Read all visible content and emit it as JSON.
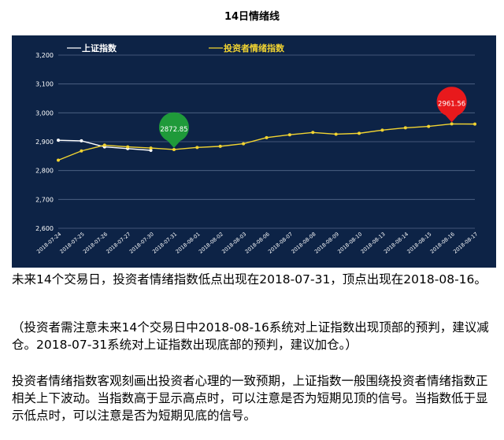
{
  "title": "14日情绪线",
  "chart_data": {
    "type": "line",
    "title": "14日情绪线",
    "x": [
      "2018-07-24",
      "2018-07-25",
      "2018-07-26",
      "2018-07-27",
      "2018-07-30",
      "2018-07-31",
      "2018-08-01",
      "2018-08-02",
      "2018-08-03",
      "2018-08-06",
      "2018-08-07",
      "2018-08-08",
      "2018-08-09",
      "2018-08-10",
      "2018-08-13",
      "2018-08-14",
      "2018-08-15",
      "2018-08-16",
      "2018-08-17"
    ],
    "yticks": [
      "2,600",
      "2,700",
      "2,800",
      "2,900",
      "3,000",
      "3,100",
      "3,200"
    ],
    "ylim": [
      2600,
      3200
    ],
    "legend_position": "top-left",
    "series": [
      {
        "name": "上证指数",
        "color": "#ffffff",
        "values": [
          2905,
          2903,
          2882,
          2876,
          2870,
          null,
          null,
          null,
          null,
          null,
          null,
          null,
          null,
          null,
          null,
          null,
          null,
          null,
          null
        ]
      },
      {
        "name": "投资者情绪指数",
        "color": "#f2d431",
        "values": [
          2836,
          2868,
          2888,
          2882,
          2878,
          2872.85,
          2880,
          2884,
          2893,
          2914,
          2924,
          2932,
          2926,
          2929,
          2940,
          2948,
          2953,
          2961.56,
          2961
        ]
      }
    ],
    "annotations": [
      {
        "label": "2872.85",
        "x": "2018-07-31",
        "y": 2872.85,
        "color": "#1f9a3a"
      },
      {
        "label": "2961.56",
        "x": "2018-08-16",
        "y": 2961.56,
        "color": "#e8191c"
      }
    ]
  },
  "text": {
    "p1": "未来14个交易日，投资者情绪指数低点出现在2018-07-31，顶点出现在2018-08-16。",
    "p2": "（投资者需注意未来14个交易日中2018-08-16系统对上证指数出现顶部的预判，建议减仓。2018-07-31系统对上证指数出现底部的预判，建议加仓。）",
    "p3": "投资者情绪指数客观刻画出投资者心理的一致预期，上证指数一般围绕投资者情绪指数正相关上下波动。当指数高于显示高点时，可以注意是否为短期见顶的信号。当指数低于显示低点时，可以注意是否为短期见底的信号。"
  }
}
